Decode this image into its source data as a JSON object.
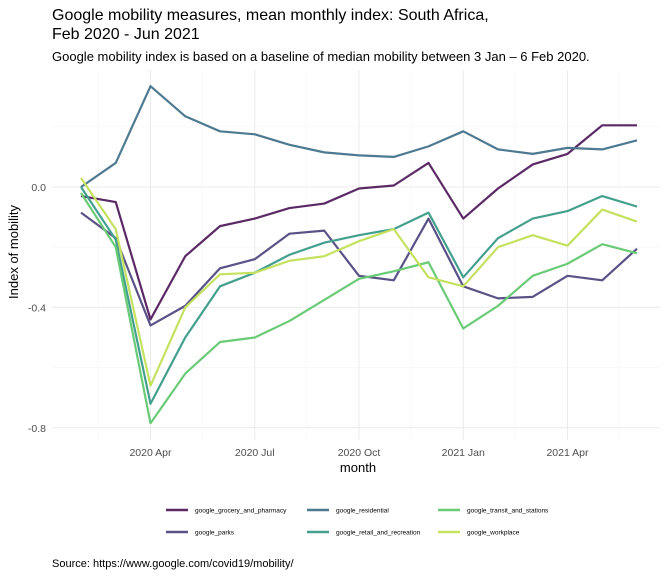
{
  "chart_data": {
    "type": "line",
    "title_line1": "Google mobility measures, mean monthly index: South Africa,",
    "title_line2": "Feb 2020 - Jun 2021",
    "subtitle": "Google mobility index is based on a baseline of median mobility between 3 Jan – 6 Feb 2020.",
    "xlabel": "month",
    "ylabel": "Index of mobility",
    "caption": "Source: https://www.google.com/covid19/mobility/",
    "x": [
      "2020-02",
      "2020-03",
      "2020-04",
      "2020-05",
      "2020-06",
      "2020-07",
      "2020-08",
      "2020-09",
      "2020-10",
      "2020-11",
      "2020-12",
      "2021-01",
      "2021-02",
      "2021-03",
      "2021-04",
      "2021-05",
      "2021-06"
    ],
    "x_ticks": [
      {
        "index": 2,
        "label": "2020 Apr"
      },
      {
        "index": 5,
        "label": "2020 Jul"
      },
      {
        "index": 8,
        "label": "2020 Oct"
      },
      {
        "index": 11,
        "label": "2021 Jan"
      },
      {
        "index": 14,
        "label": "2021 Apr"
      }
    ],
    "y_ticks": [
      {
        "value": 0.0,
        "label": "0.0"
      },
      {
        "value": -0.4,
        "label": "-0.4"
      },
      {
        "value": -0.8,
        "label": "-0.8"
      }
    ],
    "ylim": [
      -0.83,
      0.24
    ],
    "grid": true,
    "legend_position": "bottom",
    "series": [
      {
        "name": "google_grocery_and_pharmacy",
        "color": "#5b2a66",
        "values": [
          -0.03,
          -0.05,
          -0.44,
          -0.23,
          -0.13,
          -0.105,
          -0.07,
          -0.055,
          -0.005,
          0.005,
          0.08,
          -0.105,
          -0.005,
          0.075,
          0.11,
          0.205,
          0.205
        ]
      },
      {
        "name": "google_parks",
        "color": "#5a5287",
        "values": [
          -0.085,
          -0.17,
          -0.46,
          -0.395,
          -0.27,
          -0.24,
          -0.155,
          -0.145,
          -0.295,
          -0.31,
          -0.105,
          -0.33,
          -0.37,
          -0.365,
          -0.295,
          -0.31,
          -0.205
        ]
      },
      {
        "name": "google_residential",
        "color": "#4d7a91",
        "values": [
          0.0,
          0.08,
          0.335,
          0.235,
          0.185,
          0.175,
          0.14,
          0.115,
          0.105,
          0.1,
          0.135,
          0.185,
          0.125,
          0.11,
          0.13,
          0.125,
          0.155
        ]
      },
      {
        "name": "google_retail_and_recreation",
        "color": "#43a08e",
        "values": [
          0.0,
          -0.175,
          -0.72,
          -0.5,
          -0.33,
          -0.285,
          -0.225,
          -0.185,
          -0.16,
          -0.14,
          -0.085,
          -0.3,
          -0.17,
          -0.105,
          -0.08,
          -0.03,
          -0.065
        ]
      },
      {
        "name": "google_transit_and_stations",
        "color": "#6acb76",
        "values": [
          -0.02,
          -0.2,
          -0.785,
          -0.62,
          -0.515,
          -0.5,
          -0.445,
          -0.375,
          -0.305,
          -0.28,
          -0.25,
          -0.47,
          -0.395,
          -0.295,
          -0.255,
          -0.19,
          -0.22
        ]
      },
      {
        "name": "google_workplace",
        "color": "#c5e160",
        "values": [
          0.03,
          -0.14,
          -0.66,
          -0.4,
          -0.29,
          -0.285,
          -0.245,
          -0.23,
          -0.18,
          -0.14,
          -0.3,
          -0.33,
          -0.2,
          -0.16,
          -0.195,
          -0.075,
          -0.115
        ]
      }
    ]
  }
}
